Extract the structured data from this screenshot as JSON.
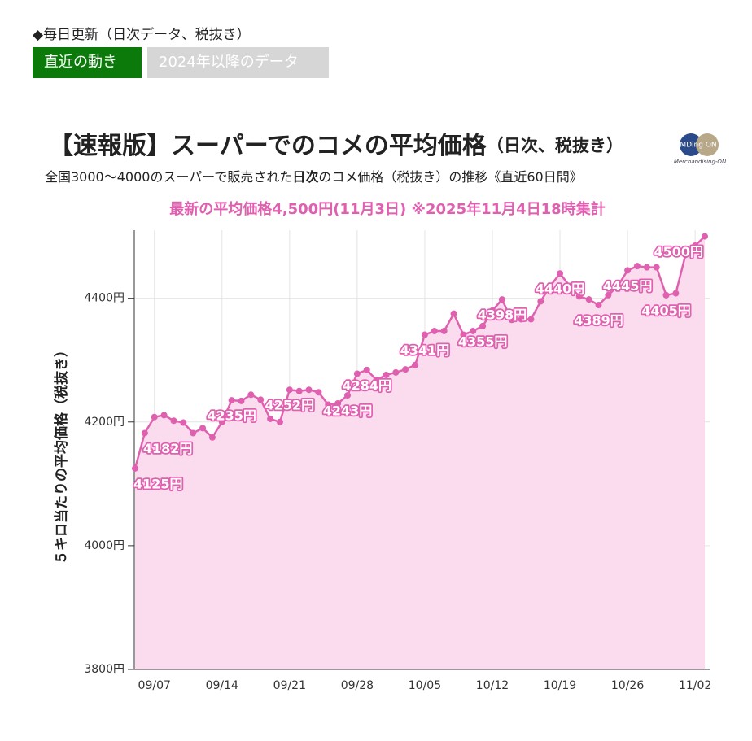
{
  "header": {
    "note": "◆毎日更新（日次データ、税抜き）",
    "tabs": [
      "直近の動き",
      "2024年以降のデータ"
    ]
  },
  "logo": {
    "text": "MDing ON",
    "sub": "Merchandising-ON"
  },
  "chart_data": {
    "type": "area",
    "title": "【速報版】スーパーでのコメの平均価格",
    "title_suffix": "（日次、税抜き）",
    "subtitle_parts": [
      "全国3000〜4000のスーパーで販売された",
      "日次",
      "のコメ価格（税抜き）の推移《直近60日間》"
    ],
    "annotation": "最新の平均価格4,500円(11月3日) ※2025年11月4日18時集計",
    "y_label": "５キロ当たりの平均価格（税抜き）",
    "color": "#e060b0",
    "fill": "#fadcee",
    "grid": true,
    "categories": [
      null,
      null,
      "09/07",
      null,
      null,
      null,
      null,
      null,
      null,
      "09/14",
      null,
      null,
      null,
      null,
      null,
      null,
      "09/21",
      null,
      null,
      null,
      null,
      null,
      null,
      "09/28",
      null,
      null,
      null,
      null,
      null,
      null,
      "10/05",
      null,
      null,
      null,
      null,
      null,
      null,
      "10/12",
      null,
      null,
      null,
      null,
      null,
      null,
      "10/19",
      null,
      null,
      null,
      null,
      null,
      null,
      "10/26",
      null,
      null,
      null,
      null,
      null,
      null,
      "11/02",
      null
    ],
    "values": [
      4125,
      4182,
      4208,
      4211,
      4202,
      4199,
      4182,
      4190,
      4175,
      4200,
      4235,
      4234,
      4244,
      4236,
      4205,
      4200,
      4252,
      4250,
      4252,
      4248,
      4228,
      4230,
      4243,
      4278,
      4284,
      4268,
      4276,
      4280,
      4285,
      4292,
      4341,
      4347,
      4347,
      4375,
      4341,
      4347,
      4355,
      4380,
      4398,
      4365,
      4366,
      4366,
      4395,
      4420,
      4440,
      4420,
      4403,
      4398,
      4389,
      4405,
      4420,
      4445,
      4452,
      4450,
      4450,
      4405,
      4408,
      4470,
      4485,
      4500
    ],
    "value_labels": [
      "4125円",
      "4182円",
      null,
      null,
      null,
      null,
      null,
      null,
      null,
      null,
      "4235円",
      null,
      null,
      null,
      null,
      null,
      "4252円",
      null,
      null,
      null,
      null,
      null,
      "4243円",
      null,
      "4284円",
      null,
      null,
      null,
      null,
      null,
      "4341円",
      null,
      null,
      null,
      null,
      null,
      "4355円",
      null,
      "4398円",
      null,
      null,
      null,
      null,
      null,
      "4440円",
      null,
      null,
      null,
      "4389円",
      null,
      null,
      "4445円",
      null,
      null,
      null,
      "4405円",
      null,
      null,
      null,
      "4500円"
    ],
    "ylim": [
      3800,
      4510
    ],
    "yticks": [
      {
        "value": 3800,
        "label": "3800円"
      },
      {
        "value": 4000,
        "label": "4000円"
      },
      {
        "value": 4200,
        "label": "4200円"
      },
      {
        "value": 4400,
        "label": "4400円"
      }
    ]
  }
}
